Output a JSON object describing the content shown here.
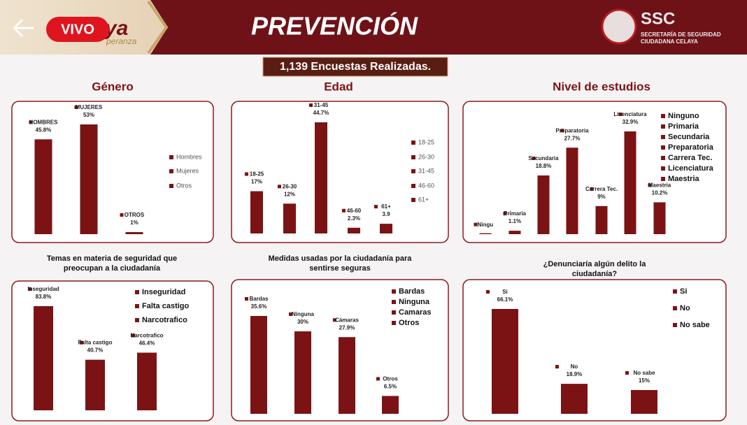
{
  "header": {
    "live": "VIVO",
    "logo_text": "ya",
    "logo_subtext": "peranza",
    "title": "PREVENCIÓN",
    "agency": "SSC",
    "agency_line1": "SECRETARÍA DE SEGURIDAD",
    "agency_line2": "CIUDADANA CELAYA"
  },
  "summary": "1,139 Encuestas Realizadas.",
  "chart_data": [
    {
      "type": "bar",
      "title": [
        "Género"
      ],
      "categories": [
        "HOMBRES",
        "MUJERES",
        "OTROS"
      ],
      "values": [
        45.8,
        53,
        1
      ],
      "value_labels": [
        "45.8%",
        "53%",
        "1%"
      ],
      "legend": [
        "Hombres",
        "Mujeres",
        "Otros"
      ],
      "color": "#7b1315"
    },
    {
      "type": "bar",
      "title": [
        "Edad"
      ],
      "categories": [
        "18-25",
        "26-30",
        "31-45",
        "46-60",
        "61+"
      ],
      "values": [
        17,
        12,
        44.7,
        2.3,
        3.9
      ],
      "value_labels": [
        "17%",
        "12%",
        "44.7%",
        "2.3%",
        "3.9"
      ],
      "legend": [
        "18-25",
        "26-30",
        "31-45",
        "46-60",
        "61+"
      ],
      "color": "#7b1315"
    },
    {
      "type": "bar",
      "title": [
        "Nivel de estudios"
      ],
      "categories": [
        "Ningu",
        "Primaria",
        "Secundaria",
        "Preparatoria",
        "Carrera Tec.",
        "Licenciatura",
        "Maestria"
      ],
      "values": [
        0.3,
        1.1,
        18.8,
        27.7,
        9,
        32.9,
        10.2
      ],
      "value_labels": [
        null,
        "1.1%",
        "18.8%",
        "27.7%",
        "9%",
        "32.9%",
        "10.2%"
      ],
      "legend": [
        "Ninguno",
        "Primaria",
        "Secundaria",
        "Preparatoria",
        "Carrera Tec.",
        "Licenciatura",
        "Maestria"
      ],
      "color": "#7b1315"
    },
    {
      "type": "bar",
      "title": [
        "Temas en materia de seguridad que",
        "preocupan a la ciudadanía"
      ],
      "categories": [
        "Inseguridad",
        "Falta castigo",
        "Narcotrafico"
      ],
      "values": [
        83.8,
        40.7,
        46.4
      ],
      "value_labels": [
        "83.8%",
        "40.7%",
        "46.4%"
      ],
      "legend": [
        "Inseguridad",
        "Falta castigo",
        "Narcotrafico"
      ],
      "color": "#7b1315"
    },
    {
      "type": "bar",
      "title": [
        "Medidas usadas por la ciudadanía para",
        "sentirse seguras"
      ],
      "categories": [
        "Bardas",
        "Ninguna",
        "Cámaras",
        "Otros"
      ],
      "values": [
        35.6,
        30,
        27.9,
        6.5
      ],
      "value_labels": [
        "35.6%",
        "30%",
        "27.9%",
        "6.5%"
      ],
      "legend": [
        "Bardas",
        "Ninguna",
        "Camaras",
        "Otros"
      ],
      "color": "#7b1315"
    },
    {
      "type": "bar",
      "title": [
        "¿Denunciaría algún delito la",
        "ciudadanía?"
      ],
      "categories": [
        "Si",
        "No",
        "No sabe"
      ],
      "values": [
        66.1,
        18.9,
        15
      ],
      "value_labels": [
        "66.1%",
        "18.9%",
        "15%"
      ],
      "legend": [
        "Si",
        "No",
        "No sabe"
      ],
      "color": "#7b1315"
    }
  ]
}
